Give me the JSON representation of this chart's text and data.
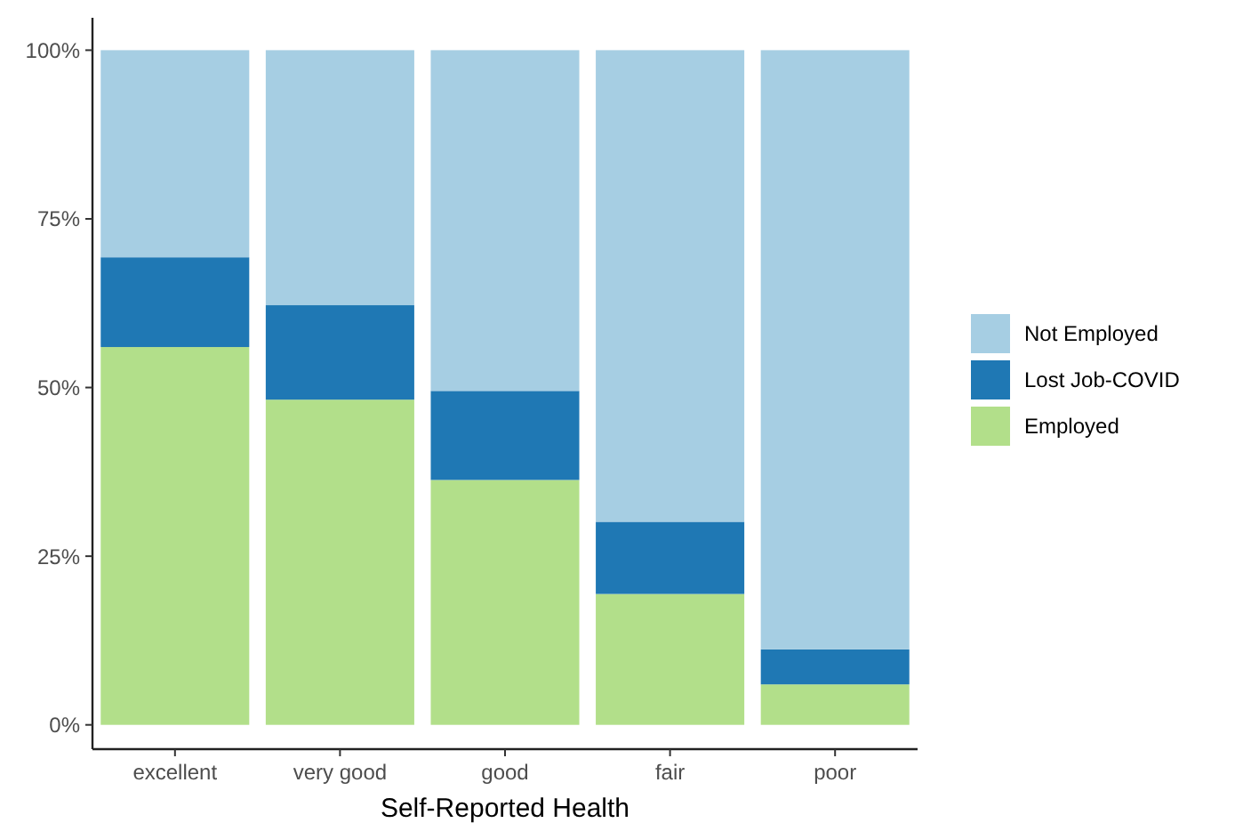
{
  "chart_data": {
    "type": "bar",
    "xlabel": "Self-Reported Health",
    "categories": [
      "excellent",
      "very good",
      "good",
      "fair",
      "poor"
    ],
    "stacked": true,
    "ylim": [
      -3.6,
      104.8
    ],
    "yticks": [
      {
        "value": 0,
        "label": "0%"
      },
      {
        "value": 25,
        "label": "25%"
      },
      {
        "value": 50,
        "label": "50%"
      },
      {
        "value": 75,
        "label": "75%"
      },
      {
        "value": 100,
        "label": "100%"
      }
    ],
    "grid": false,
    "legend": "right",
    "series": [
      {
        "name": "Employed",
        "color": "#b2df8a",
        "values": [
          56.0,
          48.2,
          36.3,
          19.4,
          6.0
        ]
      },
      {
        "name": "Lost Job-COVID",
        "color": "#1f78b4",
        "values": [
          13.3,
          14.0,
          13.2,
          10.7,
          5.2
        ]
      },
      {
        "name": "Not Employed",
        "color": "#a6cee3",
        "values": [
          30.7,
          37.8,
          50.5,
          69.9,
          88.8
        ]
      }
    ]
  }
}
